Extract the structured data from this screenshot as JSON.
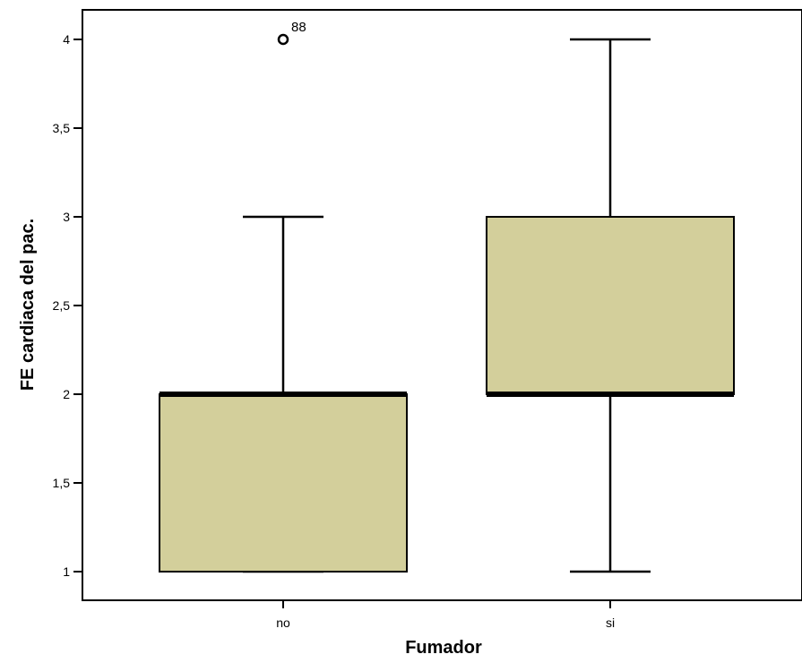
{
  "chart_data": {
    "type": "boxplot",
    "xlabel": "Fumador",
    "ylabel": "FE cardiaca del pac.",
    "ylim": [
      0.84,
      4.17
    ],
    "yticks": [
      {
        "value": 1,
        "label": "1"
      },
      {
        "value": 1.5,
        "label": "1,5"
      },
      {
        "value": 2,
        "label": "2"
      },
      {
        "value": 2.5,
        "label": "2,5"
      },
      {
        "value": 3,
        "label": "3"
      },
      {
        "value": 3.5,
        "label": "3,5"
      },
      {
        "value": 4,
        "label": "4"
      }
    ],
    "categories": [
      "no",
      "si"
    ],
    "boxes": [
      {
        "category": "no",
        "whisker_low": 1,
        "q1": 1,
        "median": 2,
        "q3": 2,
        "whisker_high": 3,
        "outliers": [
          {
            "value": 4,
            "label": "88"
          }
        ]
      },
      {
        "category": "si",
        "whisker_low": 1,
        "q1": 2,
        "median": 2,
        "q3": 3,
        "whisker_high": 4,
        "outliers": []
      }
    ],
    "box_color": "#d3cf9b",
    "grid": false,
    "legend": "none"
  }
}
